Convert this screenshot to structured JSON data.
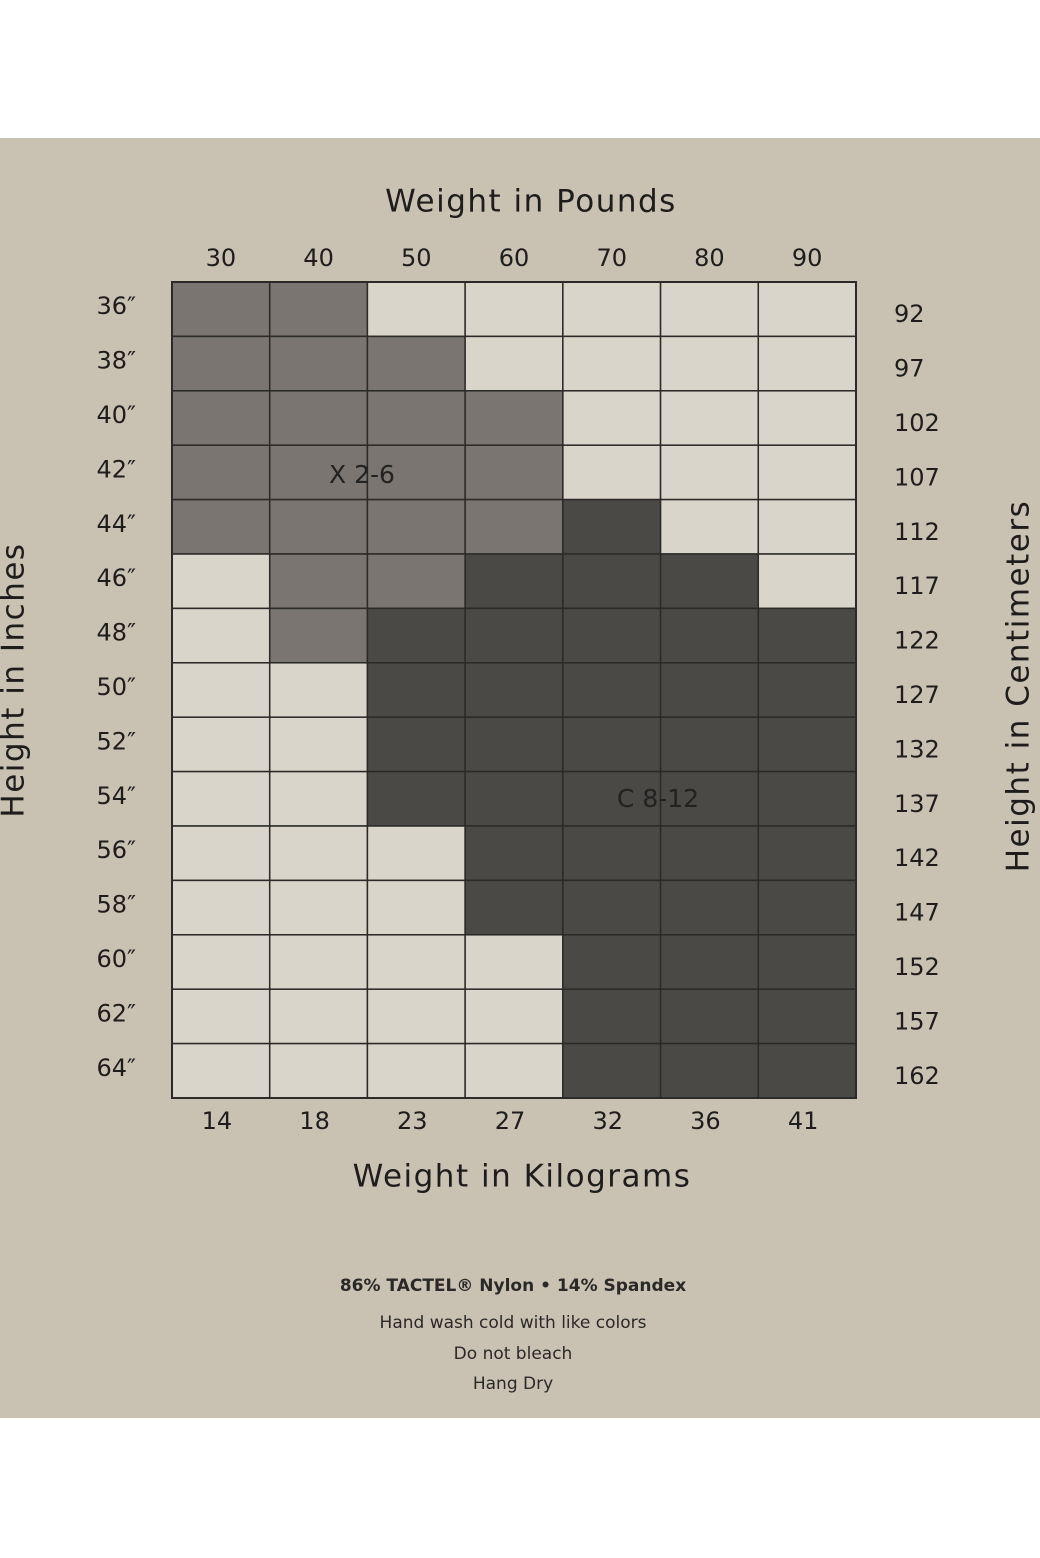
{
  "titles": {
    "top": "Weight in Pounds",
    "bottom": "Weight in Kilograms",
    "left": "Height in Inches",
    "right": "Height in Centimeters"
  },
  "pounds": [
    "30",
    "40",
    "50",
    "60",
    "70",
    "80",
    "90"
  ],
  "kilograms": [
    "14",
    "18",
    "23",
    "27",
    "32",
    "36",
    "41"
  ],
  "inches": [
    "36″",
    "38″",
    "40″",
    "42″",
    "44″",
    "46″",
    "48″",
    "50″",
    "52″",
    "54″",
    "56″",
    "58″",
    "60″",
    "62″",
    "64″"
  ],
  "centimeters": [
    "92",
    "97",
    "102",
    "107",
    "112",
    "117",
    "122",
    "127",
    "132",
    "137",
    "142",
    "147",
    "152",
    "157",
    "162"
  ],
  "sizes": [
    {
      "label": "X 2-6",
      "color": "#7a7570"
    },
    {
      "label": "C 8-12",
      "color": "#4b4946"
    }
  ],
  "cells": [
    [
      0,
      0,
      null,
      null,
      null,
      null,
      null
    ],
    [
      0,
      0,
      0,
      null,
      null,
      null,
      null
    ],
    [
      0,
      0,
      0,
      0,
      null,
      null,
      null
    ],
    [
      0,
      0,
      0,
      0,
      null,
      null,
      null
    ],
    [
      0,
      0,
      0,
      0,
      1,
      null,
      null
    ],
    [
      null,
      0,
      0,
      1,
      1,
      1,
      null
    ],
    [
      null,
      0,
      1,
      1,
      1,
      1,
      1
    ],
    [
      null,
      null,
      1,
      1,
      1,
      1,
      1
    ],
    [
      null,
      null,
      1,
      1,
      1,
      1,
      1
    ],
    [
      null,
      null,
      1,
      1,
      1,
      1,
      1
    ],
    [
      null,
      null,
      null,
      1,
      1,
      1,
      1
    ],
    [
      null,
      null,
      null,
      1,
      1,
      1,
      1
    ],
    [
      null,
      null,
      null,
      null,
      1,
      1,
      1
    ],
    [
      null,
      null,
      null,
      null,
      1,
      1,
      1
    ],
    [
      null,
      null,
      null,
      null,
      1,
      1,
      1
    ]
  ],
  "footer": [
    "86% TACTEL® Nylon • 14% Spandex",
    "Hand wash cold with like colors",
    "Do not bleach",
    "Hang Dry"
  ]
}
